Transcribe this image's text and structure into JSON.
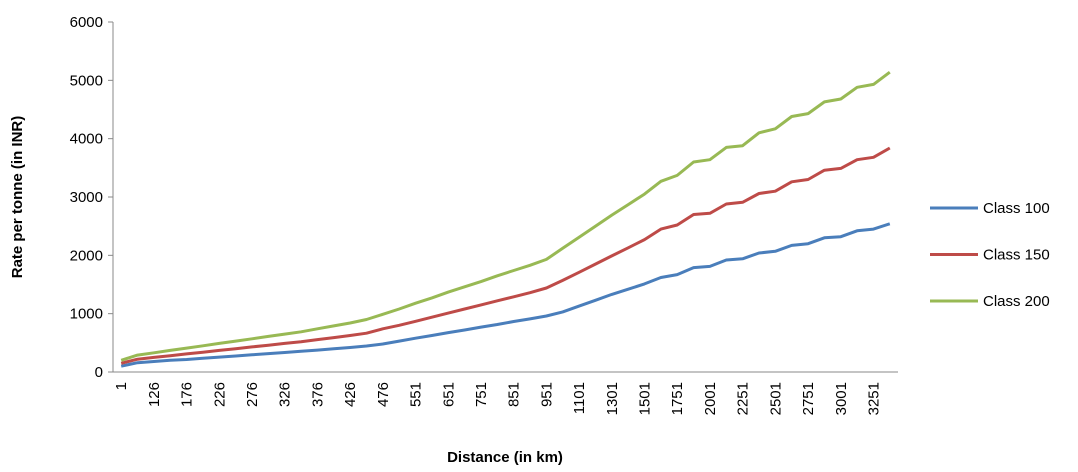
{
  "chart_data": {
    "type": "line",
    "x_label": "Distance (in km)",
    "y_label": "Rate per tonne (in INR)",
    "categories": [
      "1",
      null,
      "126",
      null,
      "176",
      null,
      "226",
      null,
      "276",
      null,
      "326",
      null,
      "376",
      null,
      "426",
      null,
      "476",
      null,
      "551",
      null,
      "651",
      null,
      "751",
      null,
      "851",
      null,
      "951",
      null,
      "1101",
      null,
      "1301",
      null,
      "1501",
      null,
      "1751",
      null,
      "2001",
      null,
      "2251",
      null,
      "2501",
      null,
      "2751",
      null,
      "3001",
      null,
      "3251",
      null
    ],
    "series": [
      {
        "name": "Class 100",
        "color": "#4a7ebb",
        "values": [
          100,
          160,
          180,
          200,
          215,
          235,
          255,
          275,
          295,
          315,
          335,
          355,
          375,
          400,
          420,
          445,
          480,
          530,
          580,
          625,
          675,
          720,
          770,
          815,
          865,
          910,
          960,
          1030,
          1130,
          1230,
          1330,
          1420,
          1510,
          1620,
          1670,
          1790,
          1810,
          1920,
          1940,
          2040,
          2070,
          2170,
          2200,
          2300,
          2320,
          2420,
          2450,
          2540
        ]
      },
      {
        "name": "Class 150",
        "color": "#be4b48",
        "values": [
          150,
          220,
          250,
          280,
          310,
          340,
          370,
          400,
          430,
          460,
          490,
          520,
          555,
          590,
          625,
          665,
          740,
          800,
          870,
          940,
          1010,
          1080,
          1150,
          1220,
          1290,
          1360,
          1440,
          1570,
          1710,
          1850,
          1990,
          2130,
          2270,
          2450,
          2520,
          2700,
          2720,
          2880,
          2910,
          3060,
          3100,
          3260,
          3300,
          3460,
          3490,
          3640,
          3680,
          3840
        ]
      },
      {
        "name": "Class 200",
        "color": "#98b954",
        "values": [
          200,
          290,
          330,
          370,
          410,
          450,
          490,
          530,
          570,
          610,
          650,
          690,
          740,
          790,
          840,
          900,
          990,
          1080,
          1180,
          1270,
          1370,
          1460,
          1550,
          1650,
          1740,
          1830,
          1930,
          2120,
          2310,
          2500,
          2690,
          2870,
          3050,
          3270,
          3370,
          3600,
          3640,
          3850,
          3880,
          4100,
          4170,
          4380,
          4430,
          4630,
          4680,
          4880,
          4930,
          5140
        ]
      }
    ],
    "ylim": [
      0,
      6000
    ],
    "yticks": [
      0,
      1000,
      2000,
      3000,
      4000,
      5000,
      6000
    ],
    "grid": false,
    "legend": "right"
  }
}
